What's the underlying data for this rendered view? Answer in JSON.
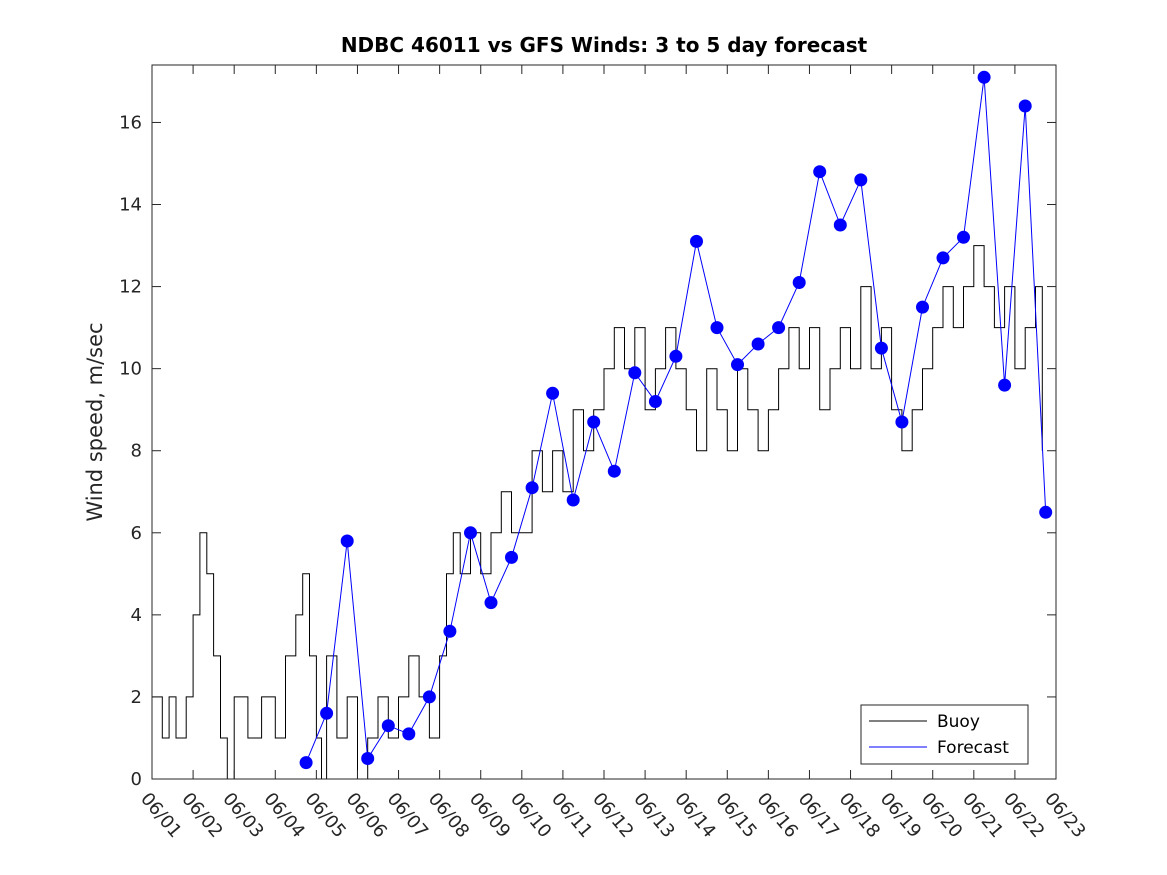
{
  "chart_data": {
    "type": "line",
    "title": "NDBC 46011 vs GFS Winds: 3 to 5 day forecast",
    "xlabel": "",
    "ylabel": "Wind speed, m/sec",
    "xlim": [
      "06/01",
      "06/23"
    ],
    "ylim": [
      0,
      17.4
    ],
    "yticks": [
      0,
      2,
      4,
      6,
      8,
      10,
      12,
      14,
      16
    ],
    "xticks": [
      "06/01",
      "06/02",
      "06/03",
      "06/04",
      "06/05",
      "06/06",
      "06/07",
      "06/08",
      "06/09",
      "06/10",
      "06/11",
      "06/12",
      "06/13",
      "06/14",
      "06/15",
      "06/16",
      "06/17",
      "06/18",
      "06/19",
      "06/20",
      "06/21",
      "06/22",
      "06/23"
    ],
    "grid": false,
    "legend_position": "bottom-right",
    "colors": {
      "buoy": "#000000",
      "forecast": "#0000ff"
    },
    "series": [
      {
        "name": "Buoy",
        "x": [
          "06/01 00:00",
          "06/01 06:00",
          "06/01 10:00",
          "06/01 14:00",
          "06/01 20:00",
          "06/02 00:00",
          "06/02 04:00",
          "06/02 08:00",
          "06/02 12:00",
          "06/02 16:00",
          "06/02 20:00",
          "06/03 00:00",
          "06/03 08:00",
          "06/03 16:00",
          "06/04 00:00",
          "06/04 06:00",
          "06/04 12:00",
          "06/04 16:00",
          "06/04 20:00",
          "06/05 00:00",
          "06/05 03:00",
          "06/05 06:00",
          "06/05 12:00",
          "06/05 18:00",
          "06/06 00:00",
          "06/06 06:00",
          "06/06 12:00",
          "06/06 18:00",
          "06/07 00:00",
          "06/07 06:00",
          "06/07 12:00",
          "06/07 18:00",
          "06/08 00:00",
          "06/08 04:00",
          "06/08 08:00",
          "06/08 12:00",
          "06/08 18:00",
          "06/09 00:00",
          "06/09 06:00",
          "06/09 12:00",
          "06/09 18:00",
          "06/10 00:00",
          "06/10 06:00",
          "06/10 12:00",
          "06/10 18:00",
          "06/11 00:00",
          "06/11 06:00",
          "06/11 12:00",
          "06/11 18:00",
          "06/12 00:00",
          "06/12 06:00",
          "06/12 12:00",
          "06/12 18:00",
          "06/13 00:00",
          "06/13 06:00",
          "06/13 12:00",
          "06/13 18:00",
          "06/14 00:00",
          "06/14 06:00",
          "06/14 12:00",
          "06/14 18:00",
          "06/15 00:00",
          "06/15 06:00",
          "06/15 12:00",
          "06/15 18:00",
          "06/16 00:00",
          "06/16 06:00",
          "06/16 12:00",
          "06/16 18:00",
          "06/17 00:00",
          "06/17 06:00",
          "06/17 12:00",
          "06/17 18:00",
          "06/18 00:00",
          "06/18 06:00",
          "06/18 12:00",
          "06/18 18:00",
          "06/19 00:00",
          "06/19 06:00",
          "06/19 12:00",
          "06/19 18:00",
          "06/20 00:00",
          "06/20 06:00",
          "06/20 12:00",
          "06/20 18:00",
          "06/21 00:00",
          "06/21 06:00",
          "06/21 12:00",
          "06/21 18:00",
          "06/22 00:00",
          "06/22 06:00",
          "06/22 12:00",
          "06/22 16:00"
        ],
        "values": [
          2,
          1,
          2,
          1,
          2,
          4,
          6,
          5,
          3,
          1,
          0,
          2,
          1,
          2,
          1,
          3,
          4,
          5,
          3,
          1,
          0,
          3,
          1,
          2,
          0,
          1,
          2,
          1,
          2,
          3,
          2,
          1,
          3,
          5,
          6,
          5,
          6,
          5,
          6,
          7,
          6,
          6,
          8,
          7,
          8,
          7,
          9,
          8,
          9,
          10,
          11,
          10,
          11,
          9,
          10,
          11,
          10,
          9,
          8,
          10,
          9,
          8,
          10,
          9,
          8,
          9,
          10,
          11,
          10,
          11,
          9,
          10,
          11,
          10,
          12,
          10,
          11,
          9,
          8,
          9,
          10,
          11,
          12,
          11,
          12,
          13,
          12,
          11,
          12,
          10,
          11,
          12,
          8
        ]
      },
      {
        "name": "Forecast",
        "x": [
          "06/04 18:00",
          "06/05 06:00",
          "06/05 18:00",
          "06/06 06:00",
          "06/06 18:00",
          "06/07 06:00",
          "06/07 18:00",
          "06/08 06:00",
          "06/08 18:00",
          "06/09 06:00",
          "06/09 18:00",
          "06/10 06:00",
          "06/10 18:00",
          "06/11 06:00",
          "06/11 18:00",
          "06/12 06:00",
          "06/12 18:00",
          "06/13 06:00",
          "06/13 18:00",
          "06/14 06:00",
          "06/14 18:00",
          "06/15 06:00",
          "06/15 18:00",
          "06/16 06:00",
          "06/16 18:00",
          "06/17 06:00",
          "06/17 18:00",
          "06/18 06:00",
          "06/18 18:00",
          "06/19 06:00",
          "06/19 18:00",
          "06/20 06:00",
          "06/20 18:00",
          "06/21 06:00",
          "06/21 18:00",
          "06/22 06:00",
          "06/22 18:00"
        ],
        "values": [
          0.4,
          1.6,
          5.8,
          0.5,
          1.3,
          1.1,
          2.0,
          3.6,
          6.0,
          4.3,
          5.4,
          7.1,
          9.4,
          6.8,
          8.7,
          7.5,
          9.9,
          9.2,
          10.3,
          13.1,
          11.0,
          10.1,
          10.6,
          11.0,
          12.1,
          14.8,
          13.5,
          14.6,
          10.5,
          8.7,
          11.5,
          12.7,
          13.2,
          17.1,
          9.6,
          16.4,
          6.5
        ]
      }
    ]
  }
}
